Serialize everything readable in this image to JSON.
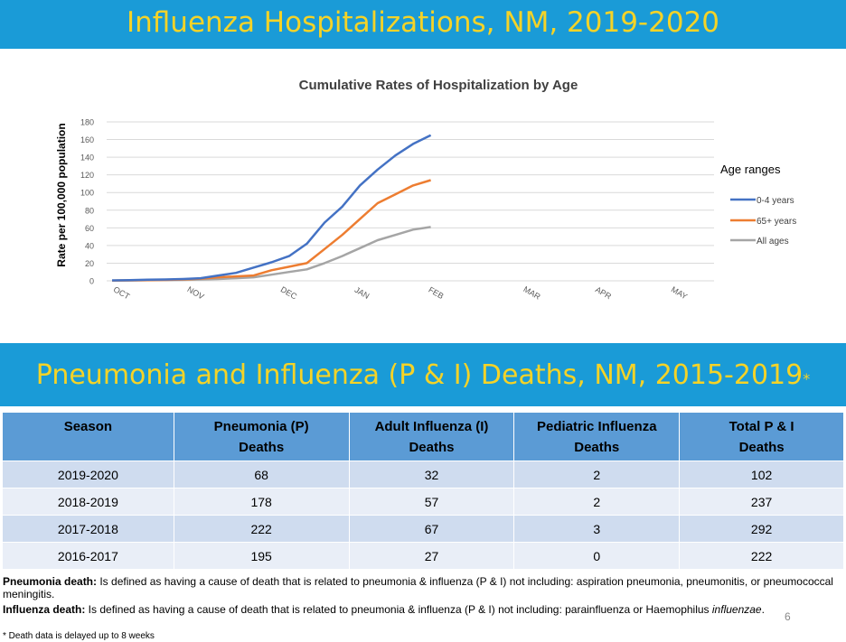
{
  "banner_top": "Influenza Hospitalizations, NM, 2019-2020",
  "banner_bottom": "Pneumonia and Influenza (P & I) Deaths, NM, 2015-2019",
  "banner_bottom_mark": "*",
  "colors": {
    "banner_bg": "#1a9bd7",
    "banner_text": "#f5d327",
    "series_0_4": "#4472c4",
    "series_65": "#ed7d31",
    "series_all": "#a5a5a5",
    "table_header": "#5b9bd5"
  },
  "chart_data": {
    "type": "line",
    "title": "Cumulative Rates of Hospitalization by Age",
    "ylabel": "Rate per 100,000 population",
    "xlabel": "",
    "ylim": [
      0,
      180
    ],
    "yticks": [
      "0",
      "20",
      "40",
      "60",
      "80",
      "100",
      "120",
      "140",
      "160",
      "180"
    ],
    "month_labels": [
      "OCT",
      "NOV",
      "DEC",
      "JAN",
      "FEB",
      "MAR",
      "APR",
      "MAY"
    ],
    "legend_title": "Age ranges",
    "x_weeks": [
      0,
      1,
      2,
      3,
      4,
      5,
      6,
      7,
      8,
      9,
      10,
      11,
      12,
      13,
      14,
      15,
      16,
      17,
      18,
      19,
      20,
      21
    ],
    "series": [
      {
        "name": "0-4 years",
        "values": [
          0.5,
          0.8,
          1.2,
          1.5,
          2,
          3,
          6,
          9,
          15,
          21,
          28,
          42,
          66,
          84,
          108,
          126,
          142,
          155,
          165
        ]
      },
      {
        "name": "65+ years",
        "values": [
          0.3,
          0.5,
          0.8,
          1,
          1.5,
          2.5,
          4,
          5,
          6,
          12,
          16,
          20,
          36,
          52,
          70,
          88,
          98,
          108,
          114
        ]
      },
      {
        "name": "All ages",
        "values": [
          0.2,
          0.4,
          0.6,
          0.8,
          1,
          1.5,
          2,
          3,
          4,
          7,
          10,
          13,
          20,
          28,
          37,
          46,
          52,
          58,
          61
        ]
      }
    ]
  },
  "table": {
    "headers": [
      [
        "Season"
      ],
      [
        "Pneumonia (P)",
        "Deaths"
      ],
      [
        "Adult Influenza (I)",
        "Deaths"
      ],
      [
        "Pediatric Influenza",
        "Deaths"
      ],
      [
        "Total P & I",
        "Deaths"
      ]
    ],
    "rows": [
      [
        "2019-2020",
        "68",
        "32",
        "2",
        "102"
      ],
      [
        "2018-2019",
        "178",
        "57",
        "2",
        "237"
      ],
      [
        "2017-2018",
        "222",
        "67",
        "3",
        "292"
      ],
      [
        "2016-2017",
        "195",
        "27",
        "0",
        "222"
      ]
    ]
  },
  "notes": {
    "pneumonia_label": "Pneumonia death:",
    "pneumonia_text": " Is defined as having a cause of death that is related to pneumonia & influenza (P & I) not including: aspiration pneumonia, pneumonitis,  or pneumococcal meningitis.",
    "influenza_label": "Influenza death:",
    "influenza_text": " Is defined as having a cause of death that is related to pneumonia & influenza (P & I) not including: parainfluenza or Haemophilus ",
    "influenza_italic": "influenzae",
    "influenza_end": ".",
    "footnote": "* Death data is delayed up to 8 weeks",
    "page_number": "6"
  }
}
